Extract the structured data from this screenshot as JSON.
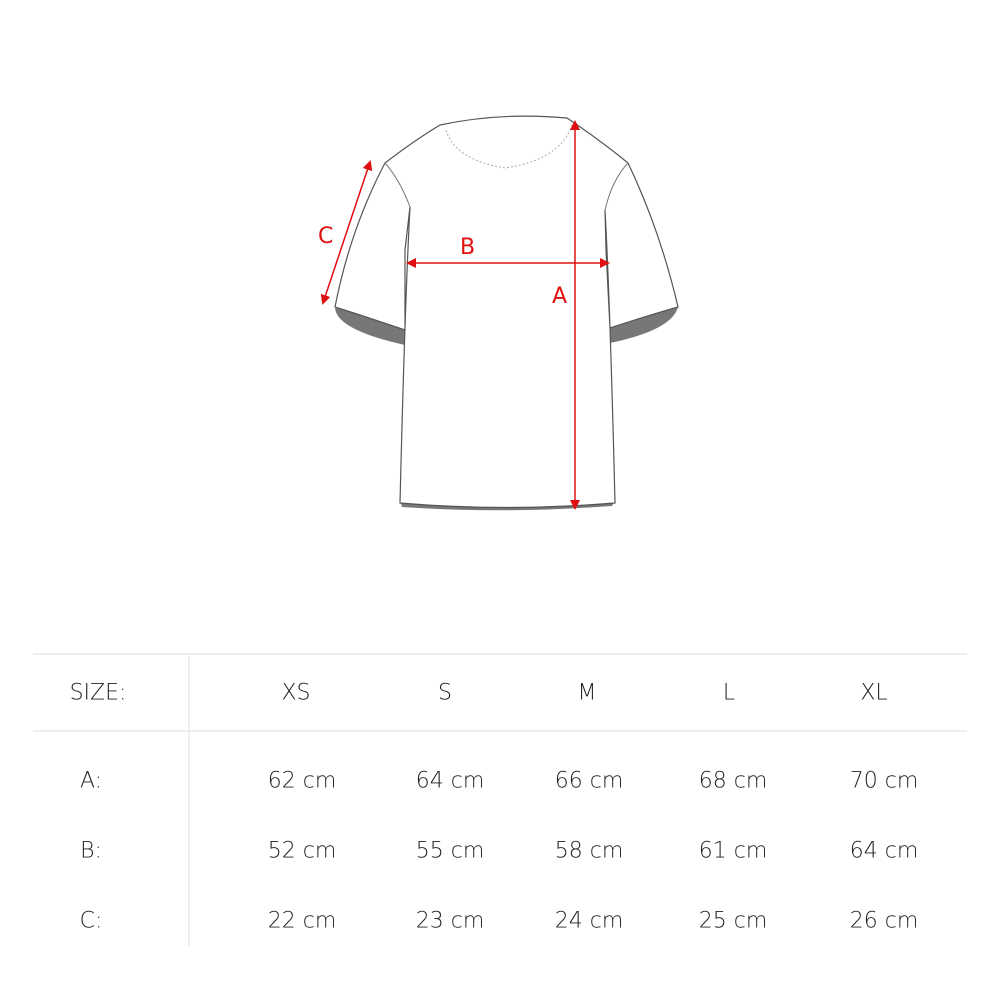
{
  "diagram": {
    "labels": {
      "a": "A",
      "b": "B",
      "c": "C"
    },
    "arrow_color": "#e01010"
  },
  "table": {
    "header_label": "SIZE:",
    "sizes": [
      "XS",
      "S",
      "M",
      "L",
      "XL"
    ],
    "rows": [
      {
        "label": "A:",
        "values": [
          "62 cm",
          "64 cm",
          "66 cm",
          "68 cm",
          "70 cm"
        ]
      },
      {
        "label": "B:",
        "values": [
          "52 cm",
          "55 cm",
          "58 cm",
          "61 cm",
          "64 cm"
        ]
      },
      {
        "label": "C:",
        "values": [
          "22 cm",
          "23 cm",
          "24 cm",
          "25 cm",
          "26 cm"
        ]
      }
    ]
  }
}
